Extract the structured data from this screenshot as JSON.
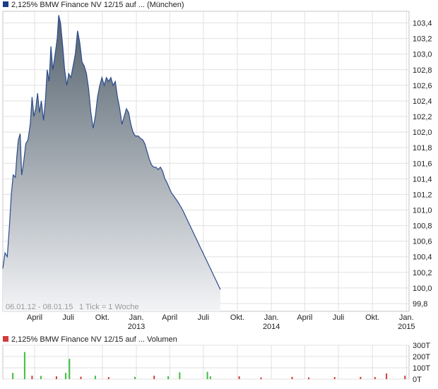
{
  "chart_data": [
    {
      "type": "area",
      "title": "2,125% BMW Finance NV 12/15 auf ... (München)",
      "legend_color": "#1a3d8a",
      "fill_top": "#52606c",
      "fill_bottom": "#f3f4f6",
      "line_color": "#2b4b8c",
      "date_range": "06.01.12 - 08.01.15",
      "tick_note": "1 Tick = 1 Woche",
      "ylim": [
        99.7,
        103.55
      ],
      "y_ticks": [
        "103,4",
        "103,2",
        "103,0",
        "102,8",
        "102,6",
        "102,4",
        "102,2",
        "102,0",
        "101,8",
        "101,6",
        "101,4",
        "101,2",
        "101,0",
        "100,8",
        "100,6",
        "100,4",
        "100,2",
        "100,0",
        "99,8"
      ],
      "x_ticks": [
        {
          "t": "2012-04-01",
          "label": "April"
        },
        {
          "t": "2012-07-01",
          "label": "Juli"
        },
        {
          "t": "2012-10-01",
          "label": "Okt."
        },
        {
          "t": "2013-01-01",
          "label": "Jan.",
          "year": "2013"
        },
        {
          "t": "2013-04-01",
          "label": "April"
        },
        {
          "t": "2013-07-01",
          "label": "Juli"
        },
        {
          "t": "2013-10-01",
          "label": "Okt."
        },
        {
          "t": "2014-01-01",
          "label": "Jan.",
          "year": "2014"
        },
        {
          "t": "2014-04-01",
          "label": "April"
        },
        {
          "t": "2014-07-01",
          "label": "Juli"
        },
        {
          "t": "2014-10-01",
          "label": "Okt."
        },
        {
          "t": "2015-01-01",
          "label": "Jan.",
          "year": "2015"
        }
      ],
      "series": [
        {
          "points": [
            [
              "2012-01-06",
              100.25
            ],
            [
              "2012-01-12",
              100.45
            ],
            [
              "2012-01-18",
              100.4
            ],
            [
              "2012-01-24",
              100.8
            ],
            [
              "2012-01-29",
              101.2
            ],
            [
              "2012-02-03",
              101.45
            ],
            [
              "2012-02-09",
              101.42
            ],
            [
              "2012-02-13",
              101.7
            ],
            [
              "2012-02-17",
              101.9
            ],
            [
              "2012-02-22",
              101.98
            ],
            [
              "2012-02-26",
              101.45
            ],
            [
              "2012-03-02",
              101.6
            ],
            [
              "2012-03-08",
              101.85
            ],
            [
              "2012-03-14",
              101.9
            ],
            [
              "2012-03-20",
              102.1
            ],
            [
              "2012-03-25",
              102.45
            ],
            [
              "2012-03-30",
              102.2
            ],
            [
              "2012-04-04",
              102.3
            ],
            [
              "2012-04-09",
              102.5
            ],
            [
              "2012-04-14",
              102.25
            ],
            [
              "2012-04-19",
              102.4
            ],
            [
              "2012-04-25",
              102.15
            ],
            [
              "2012-04-30",
              102.4
            ],
            [
              "2012-05-05",
              102.8
            ],
            [
              "2012-05-10",
              102.65
            ],
            [
              "2012-05-15",
              103.1
            ],
            [
              "2012-05-20",
              102.8
            ],
            [
              "2012-05-25",
              102.95
            ],
            [
              "2012-06-01",
              103.2
            ],
            [
              "2012-06-05",
              103.5
            ],
            [
              "2012-06-10",
              103.4
            ],
            [
              "2012-06-16",
              103.1
            ],
            [
              "2012-06-21",
              102.8
            ],
            [
              "2012-06-27",
              102.6
            ],
            [
              "2012-07-02",
              102.75
            ],
            [
              "2012-07-08",
              102.7
            ],
            [
              "2012-07-14",
              102.85
            ],
            [
              "2012-07-20",
              103.0
            ],
            [
              "2012-07-26",
              103.3
            ],
            [
              "2012-08-01",
              103.15
            ],
            [
              "2012-08-07",
              102.9
            ],
            [
              "2012-08-13",
              102.85
            ],
            [
              "2012-08-19",
              102.75
            ],
            [
              "2012-08-25",
              102.55
            ],
            [
              "2012-08-31",
              102.25
            ],
            [
              "2012-09-06",
              102.05
            ],
            [
              "2012-09-12",
              102.2
            ],
            [
              "2012-09-18",
              102.45
            ],
            [
              "2012-09-24",
              102.6
            ],
            [
              "2012-09-30",
              102.7
            ],
            [
              "2012-10-06",
              102.6
            ],
            [
              "2012-10-12",
              102.7
            ],
            [
              "2012-10-18",
              102.65
            ],
            [
              "2012-10-24",
              102.7
            ],
            [
              "2012-10-30",
              102.6
            ],
            [
              "2012-11-05",
              102.65
            ],
            [
              "2012-11-11",
              102.45
            ],
            [
              "2012-11-17",
              102.3
            ],
            [
              "2012-11-23",
              102.1
            ],
            [
              "2012-11-29",
              102.2
            ],
            [
              "2012-12-05",
              102.3
            ],
            [
              "2012-12-11",
              102.25
            ],
            [
              "2012-12-17",
              102.1
            ],
            [
              "2012-12-23",
              102.0
            ],
            [
              "2012-12-29",
              101.95
            ],
            [
              "2013-01-06",
              101.95
            ],
            [
              "2013-01-12",
              101.92
            ],
            [
              "2013-01-18",
              101.9
            ],
            [
              "2013-01-24",
              101.85
            ],
            [
              "2013-01-30",
              101.75
            ],
            [
              "2013-02-05",
              101.65
            ],
            [
              "2013-02-11",
              101.58
            ],
            [
              "2013-02-17",
              101.55
            ],
            [
              "2013-02-23",
              101.55
            ],
            [
              "2013-03-01",
              101.52
            ],
            [
              "2013-03-07",
              101.55
            ],
            [
              "2013-03-13",
              101.5
            ],
            [
              "2013-03-19",
              101.4
            ],
            [
              "2013-03-25",
              101.35
            ],
            [
              "2013-03-31",
              101.28
            ],
            [
              "2013-04-06",
              101.22
            ],
            [
              "2013-04-12",
              101.18
            ],
            [
              "2013-04-18",
              101.14
            ],
            [
              "2013-04-24",
              101.1
            ],
            [
              "2013-04-30",
              101.05
            ],
            [
              "2013-05-06",
              101.0
            ],
            [
              "2013-05-12",
              100.94
            ],
            [
              "2013-05-18",
              100.88
            ],
            [
              "2013-05-24",
              100.82
            ],
            [
              "2013-05-30",
              100.76
            ],
            [
              "2013-06-05",
              100.7
            ],
            [
              "2013-06-11",
              100.64
            ],
            [
              "2013-06-17",
              100.58
            ],
            [
              "2013-06-23",
              100.52
            ],
            [
              "2013-06-29",
              100.46
            ],
            [
              "2013-07-05",
              100.4
            ],
            [
              "2013-07-11",
              100.34
            ],
            [
              "2013-07-17",
              100.28
            ],
            [
              "2013-07-23",
              100.22
            ],
            [
              "2013-07-29",
              100.16
            ],
            [
              "2013-08-04",
              100.1
            ],
            [
              "2013-08-10",
              100.04
            ],
            [
              "2013-08-16",
              99.98
            ]
          ]
        }
      ]
    },
    {
      "type": "bar",
      "title": "2,125% BMW Finance NV 12/15 auf ... Volumen",
      "legend_color": "#d23b3b",
      "up_color": "#3cbf3c",
      "down_color": "#d23b3b",
      "ylim": [
        0,
        300
      ],
      "y_ticks": [
        "300T",
        "200T",
        "100T",
        "0T"
      ],
      "series": [
        {
          "bars": [
            [
              "2012-02-02",
              55,
              "up"
            ],
            [
              "2012-03-05",
              240,
              "up"
            ],
            [
              "2012-03-25",
              30,
              "down"
            ],
            [
              "2012-04-18",
              28,
              "up"
            ],
            [
              "2012-05-30",
              25,
              "down"
            ],
            [
              "2012-06-24",
              55,
              "up"
            ],
            [
              "2012-07-04",
              180,
              "up"
            ],
            [
              "2012-08-04",
              22,
              "down"
            ],
            [
              "2012-09-12",
              30,
              "up"
            ],
            [
              "2012-10-18",
              18,
              "down"
            ],
            [
              "2012-12-28",
              20,
              "up"
            ],
            [
              "2013-02-18",
              30,
              "down"
            ],
            [
              "2013-03-28",
              25,
              "up"
            ],
            [
              "2013-04-28",
              60,
              "up"
            ],
            [
              "2013-07-12",
              65,
              "up"
            ],
            [
              "2013-07-20",
              25,
              "up"
            ],
            [
              "2013-10-06",
              25,
              "down"
            ],
            [
              "2013-12-04",
              15,
              "down"
            ],
            [
              "2014-02-26",
              20,
              "down"
            ],
            [
              "2014-04-12",
              15,
              "down"
            ],
            [
              "2014-06-21",
              18,
              "down"
            ],
            [
              "2014-08-30",
              20,
              "down"
            ],
            [
              "2014-10-08",
              18,
              "down"
            ],
            [
              "2014-11-08",
              50,
              "down"
            ],
            [
              "2014-12-28",
              30,
              "down"
            ]
          ]
        }
      ]
    }
  ]
}
